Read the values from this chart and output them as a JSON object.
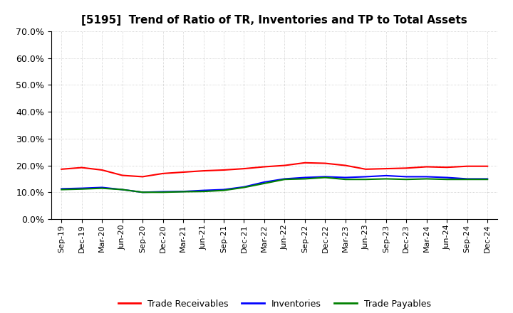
{
  "title": "[5195]  Trend of Ratio of TR, Inventories and TP to Total Assets",
  "x_labels": [
    "Sep-19",
    "Dec-19",
    "Mar-20",
    "Jun-20",
    "Sep-20",
    "Dec-20",
    "Mar-21",
    "Jun-21",
    "Sep-21",
    "Dec-21",
    "Mar-22",
    "Jun-22",
    "Sep-22",
    "Dec-22",
    "Mar-23",
    "Jun-23",
    "Sep-23",
    "Dec-23",
    "Mar-24",
    "Jun-24",
    "Sep-24",
    "Dec-24"
  ],
  "trade_receivables": [
    0.186,
    0.192,
    0.183,
    0.163,
    0.158,
    0.17,
    0.175,
    0.18,
    0.183,
    0.188,
    0.195,
    0.2,
    0.21,
    0.208,
    0.2,
    0.186,
    0.188,
    0.19,
    0.195,
    0.193,
    0.197,
    0.197
  ],
  "inventories": [
    0.113,
    0.115,
    0.118,
    0.11,
    0.1,
    0.102,
    0.103,
    0.107,
    0.11,
    0.12,
    0.138,
    0.15,
    0.155,
    0.158,
    0.155,
    0.158,
    0.162,
    0.158,
    0.158,
    0.155,
    0.15,
    0.15
  ],
  "trade_payables": [
    0.11,
    0.112,
    0.115,
    0.11,
    0.1,
    0.1,
    0.102,
    0.103,
    0.107,
    0.118,
    0.133,
    0.148,
    0.15,
    0.155,
    0.148,
    0.148,
    0.15,
    0.148,
    0.15,
    0.148,
    0.148,
    0.148
  ],
  "ylim": [
    0.0,
    0.7
  ],
  "yticks": [
    0.0,
    0.1,
    0.2,
    0.3,
    0.4,
    0.5,
    0.6,
    0.7
  ],
  "line_colors": {
    "trade_receivables": "#FF0000",
    "inventories": "#0000FF",
    "trade_payables": "#008000"
  },
  "legend_labels": [
    "Trade Receivables",
    "Inventories",
    "Trade Payables"
  ],
  "background_color": "#FFFFFF",
  "plot_bg_color": "#FFFFFF",
  "grid_color": "#999999",
  "title_fontsize": 11,
  "tick_fontsize": 8,
  "ytick_fontsize": 9
}
